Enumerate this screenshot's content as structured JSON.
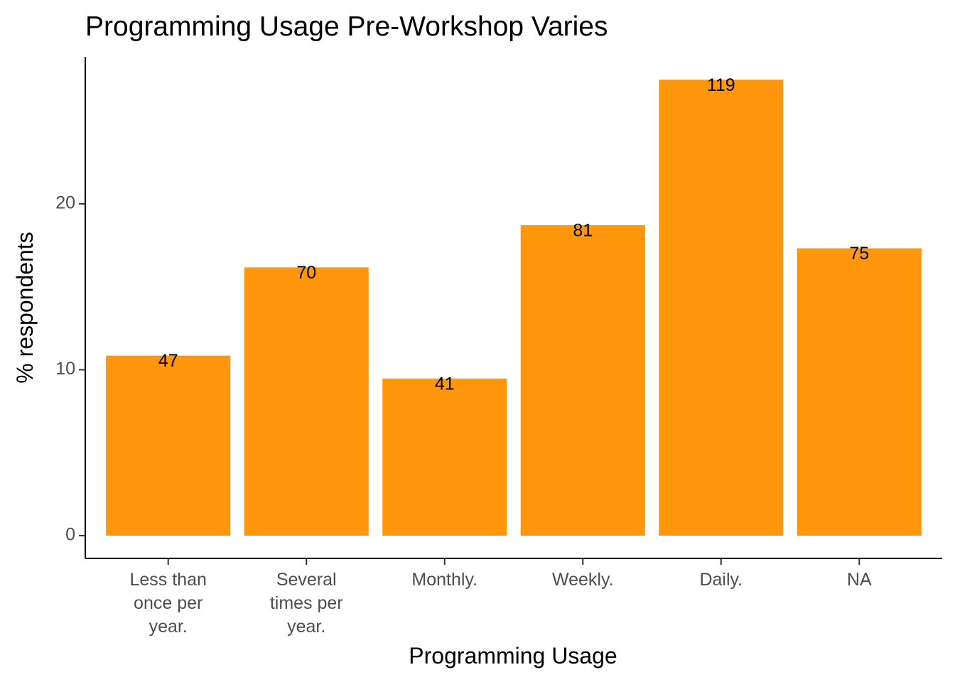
{
  "chart_data": {
    "type": "bar",
    "title": "Programming Usage Pre-Workshop Varies",
    "xlabel": "Programming Usage",
    "ylabel": "% respondents",
    "categories": [
      [
        "Less than",
        "once per",
        "year."
      ],
      [
        "Several",
        "times per",
        "year."
      ],
      [
        "Monthly."
      ],
      [
        "Weekly."
      ],
      [
        "Daily."
      ],
      [
        "NA"
      ]
    ],
    "values": [
      10.85,
      16.17,
      9.47,
      18.71,
      27.48,
      17.32
    ],
    "data_labels": [
      "47",
      "70",
      "41",
      "81",
      "119",
      "75"
    ],
    "yticks": [
      0,
      10,
      20
    ],
    "ylim": [
      -1.37,
      28.86
    ],
    "grid": false,
    "bar_color": "#FF960C"
  }
}
